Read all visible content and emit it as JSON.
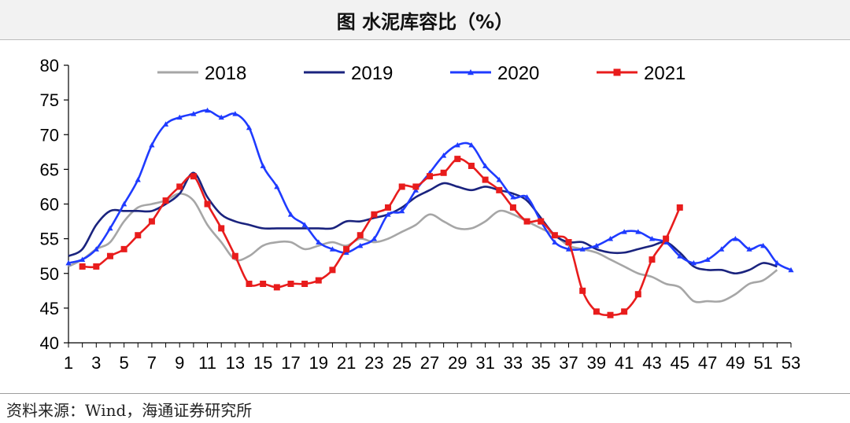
{
  "header": {
    "title": "图  水泥库容比（%）"
  },
  "footer": {
    "source": "资料来源：Wind，海通证券研究所"
  },
  "chart_data": {
    "type": "line",
    "title": "图  水泥库容比（%）",
    "xlabel": "",
    "ylabel": "",
    "xlim": [
      1,
      53
    ],
    "ylim": [
      40,
      80
    ],
    "yticks": [
      40,
      45,
      50,
      55,
      60,
      65,
      70,
      75,
      80
    ],
    "xtick_labels": [
      "1",
      "3",
      "5",
      "7",
      "9",
      "11",
      "13",
      "15",
      "17",
      "19",
      "21",
      "23",
      "25",
      "27",
      "29",
      "31",
      "33",
      "35",
      "37",
      "39",
      "41",
      "43",
      "45",
      "47",
      "49",
      "51",
      "53"
    ],
    "legend_position": "top",
    "grid": false,
    "series": [
      {
        "name": "2018",
        "color": "#a6a6a6",
        "marker": "none",
        "x": [
          1,
          2,
          3,
          4,
          5,
          6,
          7,
          8,
          9,
          10,
          11,
          12,
          13,
          14,
          15,
          16,
          17,
          18,
          19,
          20,
          21,
          22,
          23,
          24,
          25,
          26,
          27,
          28,
          29,
          30,
          31,
          32,
          33,
          34,
          35,
          36,
          37,
          38,
          39,
          40,
          41,
          42,
          43,
          44,
          45,
          46,
          47,
          48,
          49,
          50,
          51,
          52
        ],
        "values": [
          51.0,
          52.0,
          53.5,
          54.5,
          57.5,
          59.5,
          60.0,
          60.5,
          61.5,
          60.5,
          57.0,
          54.5,
          52.0,
          52.5,
          54.0,
          54.5,
          54.5,
          53.5,
          54.0,
          54.5,
          54.0,
          55.0,
          54.5,
          55.0,
          56.0,
          57.0,
          58.5,
          57.5,
          56.5,
          56.5,
          57.5,
          59.0,
          58.5,
          57.5,
          56.5,
          55.5,
          54.0,
          53.5,
          53.0,
          52.0,
          51.0,
          50.0,
          49.5,
          48.5,
          48.0,
          46.0,
          46.0,
          46.0,
          47.0,
          48.5,
          49.0,
          50.5
        ]
      },
      {
        "name": "2019",
        "color": "#1a237e",
        "marker": "none",
        "x": [
          1,
          2,
          3,
          4,
          5,
          6,
          7,
          8,
          9,
          10,
          11,
          12,
          13,
          14,
          15,
          16,
          17,
          18,
          19,
          20,
          21,
          22,
          23,
          24,
          25,
          26,
          27,
          28,
          29,
          30,
          31,
          32,
          33,
          34,
          35,
          36,
          37,
          38,
          39,
          40,
          41,
          42,
          43,
          44,
          45,
          46,
          47,
          48,
          49,
          50,
          51,
          52
        ],
        "values": [
          52.5,
          53.5,
          57.0,
          59.0,
          59.0,
          59.0,
          59.0,
          60.0,
          61.5,
          64.5,
          61.0,
          58.5,
          57.5,
          57.0,
          56.5,
          56.5,
          56.5,
          56.5,
          56.5,
          56.5,
          57.5,
          57.5,
          58.0,
          58.5,
          59.5,
          61.0,
          62.0,
          63.0,
          62.5,
          62.0,
          62.5,
          62.0,
          61.5,
          60.5,
          58.0,
          55.5,
          54.5,
          54.5,
          53.5,
          53.0,
          53.0,
          53.5,
          54.0,
          54.5,
          53.0,
          51.0,
          50.5,
          50.5,
          50.0,
          50.5,
          51.5,
          51.0
        ]
      },
      {
        "name": "2020",
        "color": "#1f3bff",
        "marker": "triangle",
        "x": [
          1,
          2,
          3,
          4,
          5,
          6,
          7,
          8,
          9,
          10,
          11,
          12,
          13,
          14,
          15,
          16,
          17,
          18,
          19,
          20,
          21,
          22,
          23,
          24,
          25,
          26,
          27,
          28,
          29,
          30,
          31,
          32,
          33,
          34,
          35,
          36,
          37,
          38,
          39,
          40,
          41,
          42,
          43,
          44,
          45,
          46,
          47,
          48,
          49,
          50,
          51,
          52,
          53
        ],
        "values": [
          51.5,
          52.0,
          53.5,
          56.5,
          60.0,
          63.5,
          68.5,
          71.5,
          72.5,
          73.0,
          73.5,
          72.5,
          73.0,
          71.0,
          65.5,
          62.5,
          58.5,
          57.0,
          54.5,
          53.5,
          53.0,
          54.0,
          55.0,
          58.5,
          59.0,
          62.0,
          64.5,
          67.0,
          68.5,
          68.5,
          65.5,
          63.5,
          61.0,
          61.0,
          57.5,
          54.5,
          53.5,
          53.5,
          54.0,
          55.0,
          56.0,
          56.0,
          55.0,
          54.5,
          52.5,
          51.5,
          52.0,
          53.5,
          55.0,
          53.5,
          54.0,
          51.5,
          50.5
        ]
      },
      {
        "name": "2021",
        "color": "#e81c1c",
        "marker": "square",
        "x": [
          2,
          3,
          4,
          5,
          6,
          7,
          8,
          9,
          10,
          11,
          12,
          13,
          14,
          15,
          16,
          17,
          18,
          19,
          20,
          21,
          22,
          23,
          24,
          25,
          26,
          27,
          28,
          29,
          30,
          31,
          32,
          33,
          34,
          35,
          36,
          37,
          38,
          39,
          40,
          41,
          42,
          43,
          44,
          45
        ],
        "values": [
          51.0,
          51.0,
          52.5,
          53.5,
          55.5,
          57.5,
          60.5,
          62.5,
          64.0,
          60.0,
          56.5,
          52.5,
          48.5,
          48.5,
          48.0,
          48.5,
          48.5,
          49.0,
          50.5,
          53.5,
          55.5,
          58.5,
          59.5,
          62.5,
          62.5,
          64.0,
          64.5,
          66.5,
          65.5,
          63.5,
          62.0,
          59.5,
          57.5,
          57.5,
          55.5,
          54.5,
          47.5,
          44.5,
          44.0,
          44.5,
          47.0,
          52.0,
          55.0,
          59.5
        ]
      }
    ]
  }
}
